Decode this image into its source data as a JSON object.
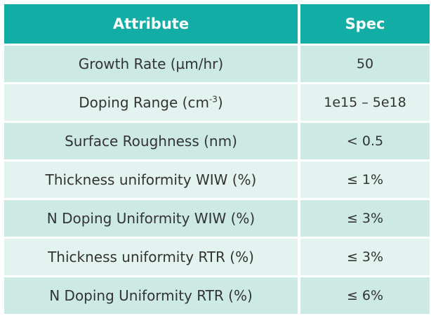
{
  "header": {
    "attribute": "Attribute",
    "spec": "Spec"
  },
  "rows": [
    {
      "attribute": "Growth Rate (µm/hr)",
      "spec": "50"
    },
    {
      "attribute_prefix": "Doping Range (cm",
      "attribute_sup": "-3",
      "attribute_suffix": ")",
      "spec": "1e15 – 5e18"
    },
    {
      "attribute": "Surface Roughness (nm)",
      "spec": "< 0.5"
    },
    {
      "attribute": "Thickness uniformity WIW (%)",
      "spec": "≤ 1%"
    },
    {
      "attribute": "N Doping Uniformity WIW (%)",
      "spec": "≤ 3%"
    },
    {
      "attribute": "Thickness uniformity RTR (%)",
      "spec": "≤ 3%"
    },
    {
      "attribute": "N Doping Uniformity RTR (%)",
      "spec": "≤ 6%"
    }
  ],
  "colors": {
    "header_bg": "#12ada4",
    "row_odd_bg": "#cce9e3",
    "row_even_bg": "#e3f3f0",
    "text": "#333333"
  }
}
